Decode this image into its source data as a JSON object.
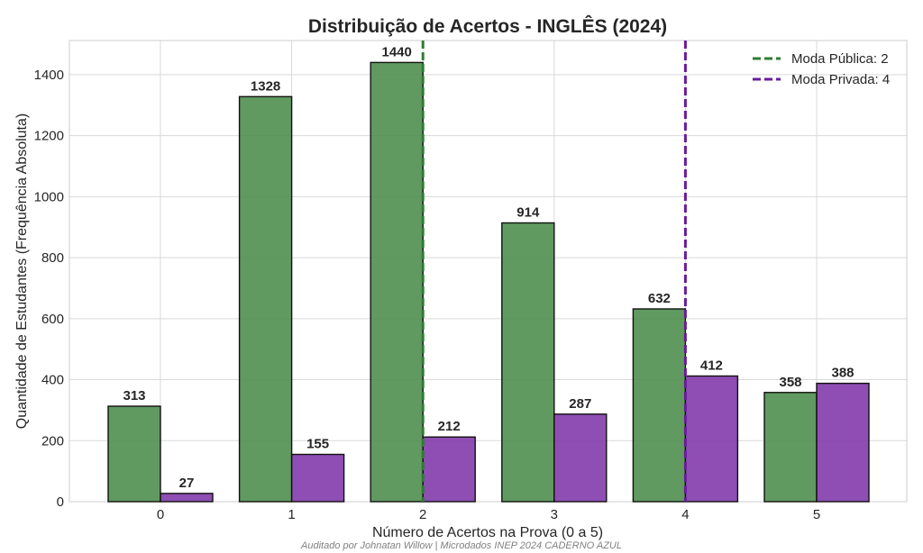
{
  "chart_data": {
    "type": "bar",
    "title": "Distribuição de Acertos - INGLÊS (2024)",
    "xlabel": "Número de Acertos na Prova (0 a 5)",
    "ylabel": "Quantidade de Estudantes (Frequência Absoluta)",
    "categories": [
      "0",
      "1",
      "2",
      "3",
      "4",
      "5"
    ],
    "series": [
      {
        "values": [
          313,
          1328,
          1440,
          914,
          632,
          358
        ],
        "color": "#4a8c4a"
      },
      {
        "values": [
          27,
          155,
          212,
          287,
          412,
          388
        ],
        "color": "#7e35a8"
      }
    ],
    "ylim": [
      0,
      1512
    ],
    "yticks": [
      0,
      200,
      400,
      600,
      800,
      1000,
      1200,
      1400
    ],
    "grid": true,
    "reference_lines": [
      {
        "label": "Moda Pública: 2",
        "x": 2,
        "color": "#2e7d32",
        "style": "dashed"
      },
      {
        "label": "Moda Privada: 4",
        "x": 4,
        "color": "#6a1b9a",
        "style": "dashed"
      }
    ],
    "legend_position": "top-right"
  },
  "footer": {
    "credit": "Auditado por Johnatan Willow | Microdados INEP 2024 CADERNO AZUL"
  }
}
